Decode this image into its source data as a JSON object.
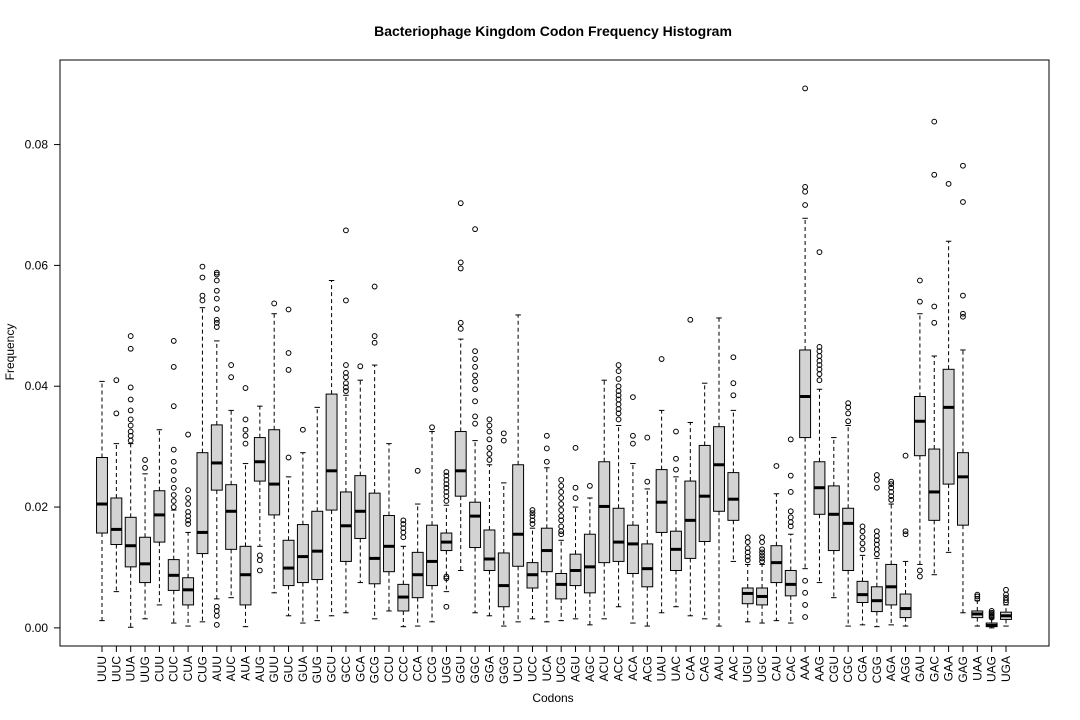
{
  "chart_data": {
    "type": "boxplot",
    "title": "Bacteriophage  Kingdom Codon Frequency Histogram",
    "xlabel": "Codons",
    "ylabel": "Frequency",
    "ylim": [
      -0.003,
      0.094
    ],
    "yticks": [
      "0.00",
      "0.02",
      "0.04",
      "0.06",
      "0.08"
    ],
    "ytick_values": [
      0.0,
      0.02,
      0.04,
      0.06,
      0.08
    ],
    "grid": false,
    "box_color": "#d3d3d3",
    "categories": [
      "UUU",
      "UUC",
      "UUA",
      "UUG",
      "CUU",
      "CUC",
      "CUA",
      "CUG",
      "AUU",
      "AUC",
      "AUA",
      "AUG",
      "GUU",
      "GUC",
      "GUA",
      "GUG",
      "GCU",
      "GCC",
      "GCA",
      "GCG",
      "CCU",
      "CCC",
      "CCA",
      "CCG",
      "UGG",
      "GGU",
      "GGC",
      "GGA",
      "GGG",
      "UCU",
      "UCC",
      "UCA",
      "UCG",
      "AGU",
      "AGC",
      "ACU",
      "ACC",
      "ACA",
      "ACG",
      "UAU",
      "UAC",
      "CAA",
      "CAG",
      "AAU",
      "AAC",
      "UGU",
      "UGC",
      "CAU",
      "CAC",
      "AAA",
      "AAG",
      "CGU",
      "CGC",
      "CGA",
      "CGG",
      "AGA",
      "AGG",
      "GAU",
      "GAC",
      "GAA",
      "GAG",
      "UAA",
      "UAG",
      "UGA"
    ],
    "boxes": [
      {
        "codon": "UUU",
        "whislo": 0.0012,
        "q1": 0.0157,
        "med": 0.0205,
        "q3": 0.0282,
        "whishi": 0.0408,
        "fliers": []
      },
      {
        "codon": "UUC",
        "whislo": 0.006,
        "q1": 0.0138,
        "med": 0.0163,
        "q3": 0.0215,
        "whishi": 0.0305,
        "fliers": [
          0.0355,
          0.041
        ]
      },
      {
        "codon": "UUA",
        "whislo": 0.0001,
        "q1": 0.0101,
        "med": 0.0136,
        "q3": 0.0183,
        "whishi": 0.0305,
        "fliers": [
          0.031,
          0.0318,
          0.0325,
          0.0335,
          0.0345,
          0.036,
          0.0378,
          0.0398,
          0.0462,
          0.0483
        ]
      },
      {
        "codon": "UUG",
        "whislo": 0.0015,
        "q1": 0.0075,
        "med": 0.0106,
        "q3": 0.015,
        "whishi": 0.0255,
        "fliers": [
          0.0265,
          0.0278
        ]
      },
      {
        "codon": "CUU",
        "whislo": 0.0038,
        "q1": 0.0142,
        "med": 0.0187,
        "q3": 0.0227,
        "whishi": 0.0328,
        "fliers": []
      },
      {
        "codon": "CUC",
        "whislo": 0.0008,
        "q1": 0.0062,
        "med": 0.0087,
        "q3": 0.0113,
        "whishi": 0.0195,
        "fliers": [
          0.02,
          0.021,
          0.022,
          0.0232,
          0.0245,
          0.026,
          0.0275,
          0.0295,
          0.0367,
          0.0432,
          0.0475
        ]
      },
      {
        "codon": "CUA",
        "whislo": 0.0003,
        "q1": 0.0038,
        "med": 0.0063,
        "q3": 0.0083,
        "whishi": 0.0158,
        "fliers": [
          0.0172,
          0.0178,
          0.0185,
          0.0192,
          0.0205,
          0.0215,
          0.0228,
          0.032
        ]
      },
      {
        "codon": "CUG",
        "whislo": 0.001,
        "q1": 0.0123,
        "med": 0.0158,
        "q3": 0.029,
        "whishi": 0.053,
        "fliers": [
          0.0542,
          0.055,
          0.058,
          0.0598
        ]
      },
      {
        "codon": "AUU",
        "whislo": 0.0048,
        "q1": 0.0228,
        "med": 0.0273,
        "q3": 0.0336,
        "whishi": 0.0475,
        "fliers": [
          0.0005,
          0.002,
          0.0028,
          0.0035,
          0.0498,
          0.0505,
          0.051,
          0.0528,
          0.0545,
          0.0558,
          0.0575,
          0.0585,
          0.0588
        ]
      },
      {
        "codon": "AUC",
        "whislo": 0.005,
        "q1": 0.013,
        "med": 0.0193,
        "q3": 0.0237,
        "whishi": 0.036,
        "fliers": [
          0.0415,
          0.0435
        ]
      },
      {
        "codon": "AUA",
        "whislo": 0.0002,
        "q1": 0.0038,
        "med": 0.0088,
        "q3": 0.0135,
        "whishi": 0.0272,
        "fliers": [
          0.0305,
          0.0318,
          0.0328,
          0.0345,
          0.0397
        ]
      },
      {
        "codon": "AUG",
        "whislo": 0.0135,
        "q1": 0.0243,
        "med": 0.0275,
        "q3": 0.0315,
        "whishi": 0.0367,
        "fliers": [
          0.0095,
          0.0112,
          0.012
        ]
      },
      {
        "codon": "GUU",
        "whislo": 0.0058,
        "q1": 0.0187,
        "med": 0.0238,
        "q3": 0.0328,
        "whishi": 0.052,
        "fliers": [
          0.0537
        ]
      },
      {
        "codon": "GUC",
        "whislo": 0.002,
        "q1": 0.007,
        "med": 0.0099,
        "q3": 0.0145,
        "whishi": 0.025,
        "fliers": [
          0.0282,
          0.0427,
          0.0455,
          0.0527
        ]
      },
      {
        "codon": "GUA",
        "whislo": 0.0008,
        "q1": 0.0075,
        "med": 0.0118,
        "q3": 0.0171,
        "whishi": 0.029,
        "fliers": [
          0.0328
        ]
      },
      {
        "codon": "GUG",
        "whislo": 0.0012,
        "q1": 0.008,
        "med": 0.0127,
        "q3": 0.0193,
        "whishi": 0.0365,
        "fliers": []
      },
      {
        "codon": "GCU",
        "whislo": 0.002,
        "q1": 0.0195,
        "med": 0.026,
        "q3": 0.0387,
        "whishi": 0.0575,
        "fliers": []
      },
      {
        "codon": "GCC",
        "whislo": 0.0025,
        "q1": 0.011,
        "med": 0.0169,
        "q3": 0.0225,
        "whishi": 0.0385,
        "fliers": [
          0.0392,
          0.0398,
          0.0405,
          0.0415,
          0.0422,
          0.0435,
          0.0542,
          0.0658
        ]
      },
      {
        "codon": "GCA",
        "whislo": 0.0075,
        "q1": 0.0148,
        "med": 0.0193,
        "q3": 0.0252,
        "whishi": 0.041,
        "fliers": [
          0.0433
        ]
      },
      {
        "codon": "GCG",
        "whislo": 0.0015,
        "q1": 0.0073,
        "med": 0.0115,
        "q3": 0.0223,
        "whishi": 0.0435,
        "fliers": [
          0.0472,
          0.0483,
          0.0565
        ]
      },
      {
        "codon": "CCU",
        "whislo": 0.0028,
        "q1": 0.0093,
        "med": 0.0135,
        "q3": 0.0186,
        "whishi": 0.0305,
        "fliers": []
      },
      {
        "codon": "CCC",
        "whislo": 0.0002,
        "q1": 0.0028,
        "med": 0.0051,
        "q3": 0.0072,
        "whishi": 0.0135,
        "fliers": [
          0.015,
          0.0158,
          0.0165,
          0.0172,
          0.0178
        ]
      },
      {
        "codon": "CCA",
        "whislo": 0.0003,
        "q1": 0.005,
        "med": 0.0088,
        "q3": 0.0125,
        "whishi": 0.0205,
        "fliers": [
          0.026
        ]
      },
      {
        "codon": "CCG",
        "whislo": 0.001,
        "q1": 0.007,
        "med": 0.011,
        "q3": 0.017,
        "whishi": 0.0325,
        "fliers": [
          0.0332
        ]
      },
      {
        "codon": "UGG",
        "whislo": 0.006,
        "q1": 0.0128,
        "med": 0.0142,
        "q3": 0.0157,
        "whishi": 0.0203,
        "fliers": [
          0.0035,
          0.0082,
          0.0085,
          0.021,
          0.0218,
          0.0225,
          0.0232,
          0.0238,
          0.0245,
          0.0252,
          0.0258
        ]
      },
      {
        "codon": "GGU",
        "whislo": 0.0095,
        "q1": 0.0218,
        "med": 0.026,
        "q3": 0.0325,
        "whishi": 0.0478,
        "fliers": [
          0.0495,
          0.0505,
          0.0595,
          0.0605,
          0.0703
        ]
      },
      {
        "codon": "GGC",
        "whislo": 0.0025,
        "q1": 0.0133,
        "med": 0.0185,
        "q3": 0.0208,
        "whishi": 0.031,
        "fliers": [
          0.0338,
          0.035,
          0.0375,
          0.0395,
          0.0408,
          0.0418,
          0.0432,
          0.0445,
          0.0458,
          0.066
        ]
      },
      {
        "codon": "GGA",
        "whislo": 0.002,
        "q1": 0.0095,
        "med": 0.0114,
        "q3": 0.0162,
        "whishi": 0.027,
        "fliers": [
          0.0278,
          0.0288,
          0.0298,
          0.0312,
          0.0325,
          0.0335,
          0.0345
        ]
      },
      {
        "codon": "GGG",
        "whislo": 0.0003,
        "q1": 0.0035,
        "med": 0.007,
        "q3": 0.0124,
        "whishi": 0.024,
        "fliers": [
          0.031,
          0.0322
        ]
      },
      {
        "codon": "UCU",
        "whislo": 0.001,
        "q1": 0.0102,
        "med": 0.0155,
        "q3": 0.027,
        "whishi": 0.0518,
        "fliers": []
      },
      {
        "codon": "UCC",
        "whislo": 0.0015,
        "q1": 0.0066,
        "med": 0.0088,
        "q3": 0.0108,
        "whishi": 0.0165,
        "fliers": [
          0.0172,
          0.0178,
          0.0185,
          0.019,
          0.0195
        ]
      },
      {
        "codon": "UCA",
        "whislo": 0.001,
        "q1": 0.0093,
        "med": 0.0128,
        "q3": 0.0165,
        "whishi": 0.0265,
        "fliers": [
          0.0275,
          0.0297,
          0.0318
        ]
      },
      {
        "codon": "UCG",
        "whislo": 0.0012,
        "q1": 0.0048,
        "med": 0.0072,
        "q3": 0.009,
        "whishi": 0.0145,
        "fliers": [
          0.0155,
          0.016,
          0.0168,
          0.0178,
          0.0185,
          0.0195,
          0.0205,
          0.0215,
          0.0225,
          0.0235,
          0.0245
        ]
      },
      {
        "codon": "AGU",
        "whislo": 0.0015,
        "q1": 0.007,
        "med": 0.0095,
        "q3": 0.0122,
        "whishi": 0.02,
        "fliers": [
          0.0215,
          0.0232,
          0.0298
        ]
      },
      {
        "codon": "AGC",
        "whislo": 0.0005,
        "q1": 0.0058,
        "med": 0.0101,
        "q3": 0.0155,
        "whishi": 0.0215,
        "fliers": [
          0.0235
        ]
      },
      {
        "codon": "ACU",
        "whislo": 0.0015,
        "q1": 0.0108,
        "med": 0.0201,
        "q3": 0.0275,
        "whishi": 0.041,
        "fliers": []
      },
      {
        "codon": "ACC",
        "whislo": 0.0035,
        "q1": 0.011,
        "med": 0.0142,
        "q3": 0.0198,
        "whishi": 0.0335,
        "fliers": [
          0.0345,
          0.0355,
          0.0362,
          0.037,
          0.0378,
          0.0385,
          0.0392,
          0.04,
          0.0412,
          0.0425,
          0.0435
        ]
      },
      {
        "codon": "ACA",
        "whislo": 0.0008,
        "q1": 0.009,
        "med": 0.0139,
        "q3": 0.017,
        "whishi": 0.0272,
        "fliers": [
          0.0305,
          0.0318,
          0.0382
        ]
      },
      {
        "codon": "ACG",
        "whislo": 0.0003,
        "q1": 0.0068,
        "med": 0.0098,
        "q3": 0.0139,
        "whishi": 0.023,
        "fliers": [
          0.0242,
          0.0315
        ]
      },
      {
        "codon": "UAU",
        "whislo": 0.0025,
        "q1": 0.0158,
        "med": 0.0208,
        "q3": 0.0262,
        "whishi": 0.036,
        "fliers": [
          0.0445
        ]
      },
      {
        "codon": "UAC",
        "whislo": 0.0035,
        "q1": 0.0095,
        "med": 0.013,
        "q3": 0.016,
        "whishi": 0.025,
        "fliers": [
          0.0262,
          0.028,
          0.0325
        ]
      },
      {
        "codon": "CAA",
        "whislo": 0.002,
        "q1": 0.0115,
        "med": 0.0178,
        "q3": 0.0243,
        "whishi": 0.034,
        "fliers": [
          0.051
        ]
      },
      {
        "codon": "CAG",
        "whislo": 0.0015,
        "q1": 0.0143,
        "med": 0.0218,
        "q3": 0.0302,
        "whishi": 0.0405,
        "fliers": []
      },
      {
        "codon": "AAU",
        "whislo": 0.0003,
        "q1": 0.0193,
        "med": 0.027,
        "q3": 0.0333,
        "whishi": 0.0513,
        "fliers": []
      },
      {
        "codon": "AAC",
        "whislo": 0.011,
        "q1": 0.0178,
        "med": 0.0213,
        "q3": 0.0257,
        "whishi": 0.036,
        "fliers": [
          0.0385,
          0.0405,
          0.0448
        ]
      },
      {
        "codon": "UGU",
        "whislo": 0.001,
        "q1": 0.004,
        "med": 0.0057,
        "q3": 0.0066,
        "whishi": 0.0105,
        "fliers": [
          0.0112,
          0.0118,
          0.0125,
          0.0132,
          0.0142,
          0.015
        ]
      },
      {
        "codon": "UGC",
        "whislo": 0.0008,
        "q1": 0.0038,
        "med": 0.0052,
        "q3": 0.0066,
        "whishi": 0.0105,
        "fliers": [
          0.011,
          0.0115,
          0.012,
          0.0125,
          0.013,
          0.0142,
          0.015
        ]
      },
      {
        "codon": "CAU",
        "whislo": 0.0012,
        "q1": 0.0075,
        "med": 0.0108,
        "q3": 0.0136,
        "whishi": 0.0222,
        "fliers": [
          0.0268
        ]
      },
      {
        "codon": "CAC",
        "whislo": 0.0008,
        "q1": 0.0053,
        "med": 0.0072,
        "q3": 0.0095,
        "whishi": 0.0155,
        "fliers": [
          0.0168,
          0.0175,
          0.0183,
          0.0193,
          0.0225,
          0.0252,
          0.0312
        ]
      },
      {
        "codon": "AAA",
        "whislo": 0.0098,
        "q1": 0.0315,
        "med": 0.0383,
        "q3": 0.046,
        "whishi": 0.0678,
        "fliers": [
          0.0018,
          0.0038,
          0.0058,
          0.0078,
          0.07,
          0.0722,
          0.073,
          0.0893
        ]
      },
      {
        "codon": "AAG",
        "whislo": 0.0075,
        "q1": 0.0188,
        "med": 0.0232,
        "q3": 0.0275,
        "whishi": 0.0395,
        "fliers": [
          0.041,
          0.042,
          0.0428,
          0.0435,
          0.0442,
          0.045,
          0.0458,
          0.0465,
          0.0622
        ]
      },
      {
        "codon": "CGU",
        "whislo": 0.005,
        "q1": 0.0128,
        "med": 0.0188,
        "q3": 0.0235,
        "whishi": 0.0315,
        "fliers": []
      },
      {
        "codon": "CGC",
        "whislo": 0.0003,
        "q1": 0.0095,
        "med": 0.0173,
        "q3": 0.0198,
        "whishi": 0.0335,
        "fliers": [
          0.0342,
          0.0355,
          0.0365,
          0.0372
        ]
      },
      {
        "codon": "CGA",
        "whislo": 0.0005,
        "q1": 0.0042,
        "med": 0.0055,
        "q3": 0.0077,
        "whishi": 0.012,
        "fliers": [
          0.013,
          0.014,
          0.015,
          0.016,
          0.0168
        ]
      },
      {
        "codon": "CGG",
        "whislo": 0.0002,
        "q1": 0.0027,
        "med": 0.0045,
        "q3": 0.0068,
        "whishi": 0.0115,
        "fliers": [
          0.0122,
          0.013,
          0.0138,
          0.0145,
          0.0152,
          0.016,
          0.0232,
          0.0245,
          0.0253
        ]
      },
      {
        "codon": "AGA",
        "whislo": 0.0005,
        "q1": 0.0038,
        "med": 0.0068,
        "q3": 0.0105,
        "whishi": 0.0205,
        "fliers": [
          0.0212,
          0.0218,
          0.0225,
          0.0232,
          0.0238,
          0.0242
        ]
      },
      {
        "codon": "AGG",
        "whislo": 0.0003,
        "q1": 0.0017,
        "med": 0.0032,
        "q3": 0.0056,
        "whishi": 0.011,
        "fliers": [
          0.0155,
          0.016,
          0.0285
        ]
      },
      {
        "codon": "GAU",
        "whislo": 0.0105,
        "q1": 0.0285,
        "med": 0.0342,
        "q3": 0.0383,
        "whishi": 0.052,
        "fliers": [
          0.0085,
          0.0095,
          0.054,
          0.0575
        ]
      },
      {
        "codon": "GAC",
        "whislo": 0.0088,
        "q1": 0.0178,
        "med": 0.0225,
        "q3": 0.0296,
        "whishi": 0.045,
        "fliers": [
          0.0505,
          0.0532,
          0.075,
          0.0838
        ]
      },
      {
        "codon": "GAA",
        "whislo": 0.0125,
        "q1": 0.0238,
        "med": 0.0365,
        "q3": 0.0428,
        "whishi": 0.064,
        "fliers": [
          0.0735
        ]
      },
      {
        "codon": "GAG",
        "whislo": 0.0025,
        "q1": 0.017,
        "med": 0.025,
        "q3": 0.029,
        "whishi": 0.046,
        "fliers": [
          0.0515,
          0.052,
          0.055,
          0.0705,
          0.0765
        ]
      },
      {
        "codon": "UAA",
        "whislo": 0.0003,
        "q1": 0.0017,
        "med": 0.0023,
        "q3": 0.0028,
        "whishi": 0.0045,
        "fliers": [
          0.0048,
          0.0052,
          0.0055
        ]
      },
      {
        "codon": "UAG",
        "whislo": 0.0,
        "q1": 0.0002,
        "med": 0.0004,
        "q3": 0.0008,
        "whishi": 0.0015,
        "fliers": [
          0.0017,
          0.0019,
          0.0021,
          0.0023,
          0.0025,
          0.0028
        ]
      },
      {
        "codon": "UGA",
        "whislo": 0.0003,
        "q1": 0.0014,
        "med": 0.002,
        "q3": 0.0026,
        "whishi": 0.0038,
        "fliers": [
          0.0042,
          0.0046,
          0.005,
          0.0055,
          0.0063
        ]
      }
    ]
  }
}
